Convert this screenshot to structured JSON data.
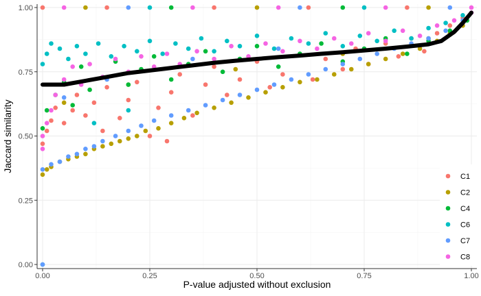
{
  "chart_data": {
    "type": "scatter",
    "title": "",
    "xlabel": "P-value adjusted without exclusion",
    "ylabel": "Jaccard similarity",
    "xlim": [
      0,
      1
    ],
    "ylim": [
      0,
      1
    ],
    "x_ticks": [
      {
        "value": 0,
        "label": "0.00"
      },
      {
        "value": 0.25,
        "label": "0.25"
      },
      {
        "value": 0.5,
        "label": "0.50"
      },
      {
        "value": 0.75,
        "label": "0.75"
      },
      {
        "value": 1,
        "label": "1.00"
      }
    ],
    "y_ticks": [
      {
        "value": 0,
        "label": "0.00"
      },
      {
        "value": 0.25,
        "label": "0.25"
      },
      {
        "value": 0.5,
        "label": "0.50"
      },
      {
        "value": 0.75,
        "label": "0.75"
      },
      {
        "value": 1,
        "label": "1.00"
      }
    ],
    "grid": true,
    "legend_position": "bottom-right",
    "series": [
      {
        "name": "C1",
        "color": "#F8766D",
        "points": [
          [
            0.0,
            0.47
          ],
          [
            0.01,
            0.52
          ],
          [
            0.02,
            0.56
          ],
          [
            0.03,
            0.61
          ],
          [
            0.05,
            0.55
          ],
          [
            0.07,
            0.6
          ],
          [
            0.08,
            0.66
          ],
          [
            0.1,
            0.58
          ],
          [
            0.12,
            0.63
          ],
          [
            0.14,
            0.52
          ],
          [
            0.15,
            0.69
          ],
          [
            0.18,
            0.57
          ],
          [
            0.2,
            0.64
          ],
          [
            0.22,
            0.71
          ],
          [
            0.25,
            0.5
          ],
          [
            0.27,
            0.61
          ],
          [
            0.29,
            0.48
          ],
          [
            0.3,
            0.67
          ],
          [
            0.32,
            0.74
          ],
          [
            0.35,
            0.58
          ],
          [
            0.38,
            0.7
          ],
          [
            0.4,
            0.77
          ],
          [
            0.43,
            0.66
          ],
          [
            0.46,
            0.72
          ],
          [
            0.5,
            0.79
          ],
          [
            0.53,
            0.69
          ],
          [
            0.56,
            0.74
          ],
          [
            0.6,
            0.82
          ],
          [
            0.63,
            0.72
          ],
          [
            0.66,
            0.8
          ],
          [
            0.7,
            0.76
          ],
          [
            0.73,
            0.84
          ],
          [
            0.76,
            0.78
          ],
          [
            0.8,
            0.86
          ],
          [
            0.83,
            0.81
          ],
          [
            0.86,
            0.88
          ],
          [
            0.89,
            0.83
          ],
          [
            0.92,
            0.9
          ],
          [
            0.95,
            0.93
          ],
          [
            0.98,
            0.96
          ],
          [
            0.0,
            1.0
          ],
          [
            0.15,
            1.0
          ],
          [
            0.4,
            1.0
          ],
          [
            0.62,
            1.0
          ],
          [
            0.85,
            1.0
          ]
        ]
      },
      {
        "name": "C2",
        "color": "#B79F00",
        "points": [
          [
            0.0,
            0.35
          ],
          [
            0.01,
            0.37
          ],
          [
            0.02,
            0.38
          ],
          [
            0.04,
            0.4
          ],
          [
            0.06,
            0.41
          ],
          [
            0.08,
            0.42
          ],
          [
            0.1,
            0.43
          ],
          [
            0.12,
            0.45
          ],
          [
            0.14,
            0.46
          ],
          [
            0.16,
            0.47
          ],
          [
            0.18,
            0.48
          ],
          [
            0.2,
            0.49
          ],
          [
            0.22,
            0.5
          ],
          [
            0.24,
            0.52
          ],
          [
            0.27,
            0.53
          ],
          [
            0.3,
            0.55
          ],
          [
            0.33,
            0.57
          ],
          [
            0.36,
            0.59
          ],
          [
            0.4,
            0.61
          ],
          [
            0.44,
            0.63
          ],
          [
            0.48,
            0.65
          ],
          [
            0.52,
            0.67
          ],
          [
            0.56,
            0.69
          ],
          [
            0.6,
            0.71
          ],
          [
            0.64,
            0.72
          ],
          [
            0.68,
            0.74
          ],
          [
            0.72,
            0.76
          ],
          [
            0.76,
            0.78
          ],
          [
            0.8,
            0.8
          ],
          [
            0.84,
            0.82
          ],
          [
            0.88,
            0.84
          ],
          [
            0.92,
            0.87
          ],
          [
            0.95,
            0.9
          ],
          [
            0.98,
            0.93
          ],
          [
            0.05,
            0.63
          ],
          [
            0.2,
            0.7
          ],
          [
            0.45,
            0.76
          ],
          [
            0.7,
            0.82
          ],
          [
            0.9,
            0.88
          ],
          [
            0.1,
            1.0
          ],
          [
            0.5,
            1.0
          ],
          [
            0.9,
            1.0
          ]
        ]
      },
      {
        "name": "C4",
        "color": "#00BA38",
        "points": [
          [
            0.0,
            0.53
          ],
          [
            0.01,
            0.6
          ],
          [
            0.03,
            0.66
          ],
          [
            0.05,
            0.71
          ],
          [
            0.07,
            0.62
          ],
          [
            0.09,
            0.77
          ],
          [
            0.11,
            0.68
          ],
          [
            0.14,
            0.73
          ],
          [
            0.17,
            0.79
          ],
          [
            0.2,
            0.7
          ],
          [
            0.23,
            0.76
          ],
          [
            0.26,
            0.81
          ],
          [
            0.3,
            0.72
          ],
          [
            0.34,
            0.78
          ],
          [
            0.38,
            0.83
          ],
          [
            0.42,
            0.75
          ],
          [
            0.46,
            0.8
          ],
          [
            0.5,
            0.85
          ],
          [
            0.55,
            0.77
          ],
          [
            0.6,
            0.82
          ],
          [
            0.65,
            0.86
          ],
          [
            0.7,
            0.79
          ],
          [
            0.75,
            0.84
          ],
          [
            0.8,
            0.88
          ],
          [
            0.85,
            0.82
          ],
          [
            0.9,
            0.87
          ],
          [
            0.95,
            0.91
          ],
          [
            0.99,
            0.95
          ],
          [
            0.3,
            1.0
          ],
          [
            0.7,
            1.0
          ]
        ]
      },
      {
        "name": "C6",
        "color": "#00BFC4",
        "points": [
          [
            0.0,
            0.78
          ],
          [
            0.01,
            0.82
          ],
          [
            0.02,
            0.86
          ],
          [
            0.04,
            0.84
          ],
          [
            0.06,
            0.8
          ],
          [
            0.08,
            0.85
          ],
          [
            0.1,
            0.82
          ],
          [
            0.13,
            0.86
          ],
          [
            0.16,
            0.81
          ],
          [
            0.19,
            0.85
          ],
          [
            0.22,
            0.83
          ],
          [
            0.25,
            0.87
          ],
          [
            0.28,
            0.82
          ],
          [
            0.31,
            0.86
          ],
          [
            0.34,
            0.84
          ],
          [
            0.37,
            0.88
          ],
          [
            0.4,
            0.83
          ],
          [
            0.43,
            0.87
          ],
          [
            0.46,
            0.85
          ],
          [
            0.5,
            0.89
          ],
          [
            0.54,
            0.84
          ],
          [
            0.58,
            0.88
          ],
          [
            0.62,
            0.86
          ],
          [
            0.66,
            0.9
          ],
          [
            0.7,
            0.85
          ],
          [
            0.74,
            0.89
          ],
          [
            0.78,
            0.87
          ],
          [
            0.82,
            0.91
          ],
          [
            0.86,
            0.88
          ],
          [
            0.9,
            0.92
          ],
          [
            0.94,
            0.94
          ],
          [
            0.98,
            0.97
          ],
          [
            0.12,
            0.55
          ],
          [
            0.2,
            0.6
          ],
          [
            0.0,
            0.0
          ],
          [
            0.25,
            1.0
          ],
          [
            0.75,
            1.0
          ]
        ]
      },
      {
        "name": "C7",
        "color": "#619CFF",
        "points": [
          [
            0.0,
            0.37
          ],
          [
            0.02,
            0.39
          ],
          [
            0.04,
            0.4
          ],
          [
            0.06,
            0.42
          ],
          [
            0.08,
            0.43
          ],
          [
            0.1,
            0.45
          ],
          [
            0.12,
            0.46
          ],
          [
            0.14,
            0.48
          ],
          [
            0.17,
            0.5
          ],
          [
            0.2,
            0.52
          ],
          [
            0.23,
            0.54
          ],
          [
            0.26,
            0.56
          ],
          [
            0.3,
            0.58
          ],
          [
            0.34,
            0.6
          ],
          [
            0.38,
            0.62
          ],
          [
            0.42,
            0.64
          ],
          [
            0.46,
            0.66
          ],
          [
            0.5,
            0.68
          ],
          [
            0.54,
            0.7
          ],
          [
            0.58,
            0.72
          ],
          [
            0.62,
            0.74
          ],
          [
            0.66,
            0.76
          ],
          [
            0.7,
            0.78
          ],
          [
            0.74,
            0.8
          ],
          [
            0.78,
            0.82
          ],
          [
            0.82,
            0.84
          ],
          [
            0.86,
            0.86
          ],
          [
            0.9,
            0.88
          ],
          [
            0.94,
            0.91
          ],
          [
            0.98,
            0.95
          ],
          [
            0.05,
            0.65
          ],
          [
            0.15,
            0.72
          ],
          [
            0.35,
            0.8
          ],
          [
            0.55,
            0.84
          ],
          [
            0.0,
            0.0
          ],
          [
            0.2,
            1.0
          ],
          [
            0.6,
            1.0
          ],
          [
            0.95,
            1.0
          ]
        ]
      },
      {
        "name": "C8",
        "color": "#F564E3",
        "points": [
          [
            0.0,
            0.45
          ],
          [
            0.0,
            0.5
          ],
          [
            0.01,
            0.55
          ],
          [
            0.02,
            0.6
          ],
          [
            0.03,
            0.66
          ],
          [
            0.05,
            0.72
          ],
          [
            0.07,
            0.77
          ],
          [
            0.09,
            0.7
          ],
          [
            0.11,
            0.78
          ],
          [
            0.14,
            0.73
          ],
          [
            0.17,
            0.8
          ],
          [
            0.2,
            0.75
          ],
          [
            0.23,
            0.81
          ],
          [
            0.26,
            0.77
          ],
          [
            0.29,
            0.82
          ],
          [
            0.32,
            0.78
          ],
          [
            0.36,
            0.83
          ],
          [
            0.4,
            0.8
          ],
          [
            0.44,
            0.85
          ],
          [
            0.48,
            0.81
          ],
          [
            0.52,
            0.86
          ],
          [
            0.56,
            0.83
          ],
          [
            0.6,
            0.87
          ],
          [
            0.64,
            0.84
          ],
          [
            0.68,
            0.88
          ],
          [
            0.72,
            0.86
          ],
          [
            0.76,
            0.9
          ],
          [
            0.8,
            0.87
          ],
          [
            0.84,
            0.91
          ],
          [
            0.88,
            0.89
          ],
          [
            0.92,
            0.93
          ],
          [
            0.96,
            0.95
          ],
          [
            1.0,
            0.98
          ],
          [
            0.05,
            1.0
          ],
          [
            0.35,
            1.0
          ],
          [
            0.55,
            1.0
          ],
          [
            0.8,
            1.0
          ],
          [
            1.0,
            1.0
          ]
        ]
      }
    ],
    "trend_line": {
      "name": "smooth",
      "color": "#000000",
      "points": [
        [
          0.0,
          0.7
        ],
        [
          0.05,
          0.7
        ],
        [
          0.1,
          0.715
        ],
        [
          0.15,
          0.73
        ],
        [
          0.2,
          0.745
        ],
        [
          0.25,
          0.755
        ],
        [
          0.3,
          0.765
        ],
        [
          0.35,
          0.775
        ],
        [
          0.4,
          0.785
        ],
        [
          0.45,
          0.793
        ],
        [
          0.5,
          0.8
        ],
        [
          0.55,
          0.807
        ],
        [
          0.6,
          0.813
        ],
        [
          0.65,
          0.82
        ],
        [
          0.7,
          0.826
        ],
        [
          0.75,
          0.833
        ],
        [
          0.8,
          0.84
        ],
        [
          0.85,
          0.848
        ],
        [
          0.9,
          0.857
        ],
        [
          0.93,
          0.87
        ],
        [
          0.96,
          0.905
        ],
        [
          0.98,
          0.94
        ],
        [
          1.0,
          0.98
        ]
      ]
    }
  }
}
